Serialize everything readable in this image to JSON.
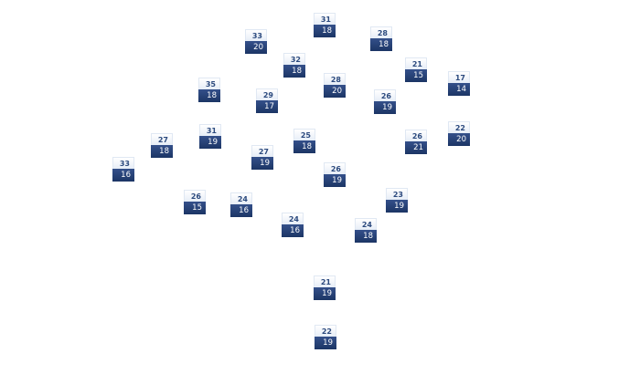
{
  "map": {
    "colors": {
      "high_text": "#2c4a7e",
      "low_bg": "#1c3565",
      "low_text": "#ffffff"
    },
    "stations": [
      {
        "high": "31",
        "low": "18"
      },
      {
        "high": "33",
        "low": "20"
      },
      {
        "high": "28",
        "low": "18"
      },
      {
        "high": "32",
        "low": "18"
      },
      {
        "high": "21",
        "low": "15"
      },
      {
        "high": "17",
        "low": "14"
      },
      {
        "high": "35",
        "low": "18"
      },
      {
        "high": "28",
        "low": "20"
      },
      {
        "high": "29",
        "low": "17"
      },
      {
        "high": "26",
        "low": "19"
      },
      {
        "high": "31",
        "low": "19"
      },
      {
        "high": "22",
        "low": "20"
      },
      {
        "high": "27",
        "low": "18"
      },
      {
        "high": "25",
        "low": "18"
      },
      {
        "high": "26",
        "low": "21"
      },
      {
        "high": "27",
        "low": "19"
      },
      {
        "high": "33",
        "low": "16"
      },
      {
        "high": "26",
        "low": "19"
      },
      {
        "high": "23",
        "low": "19"
      },
      {
        "high": "26",
        "low": "15"
      },
      {
        "high": "24",
        "low": "16"
      },
      {
        "high": "24",
        "low": "16"
      },
      {
        "high": "24",
        "low": "18"
      },
      {
        "high": "21",
        "low": "19"
      },
      {
        "high": "22",
        "low": "19"
      }
    ]
  }
}
